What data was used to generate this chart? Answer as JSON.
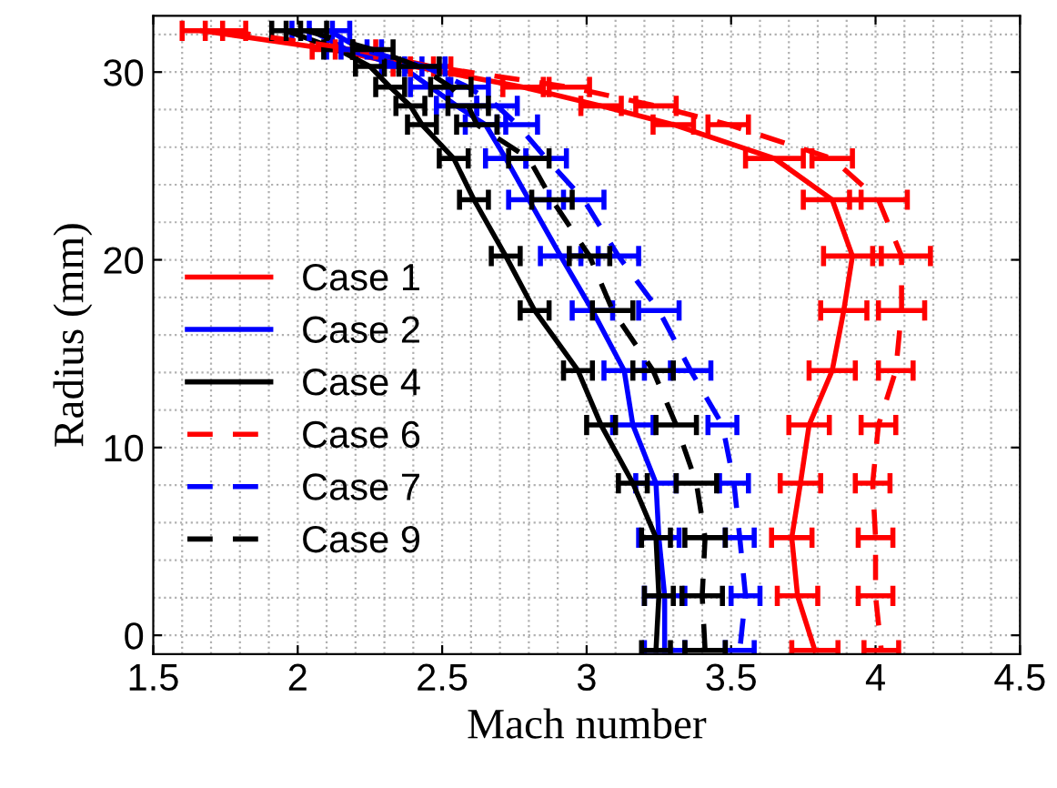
{
  "chart_data": {
    "type": "line",
    "xlabel": "Mach number",
    "ylabel": "Radius (mm)",
    "xlim": [
      1.5,
      4.5
    ],
    "xticks": [
      1.5,
      2,
      2.5,
      3,
      3.5,
      4,
      4.5
    ],
    "ylim": [
      -1,
      33
    ],
    "yticks": [
      0,
      10,
      20,
      30
    ],
    "grid": true,
    "legend": "left",
    "marker": "none",
    "series": [
      {
        "name": "Case 1",
        "color": "#ff0000",
        "line_style": "solid",
        "x": [
          1.67,
          2.12,
          2.4,
          2.78,
          3.05,
          3.3,
          3.65,
          3.85,
          3.92,
          3.89,
          3.85,
          3.77,
          3.74,
          3.71,
          3.73,
          3.79
        ],
        "values": [
          32.2,
          31.2,
          30.3,
          29.2,
          28.2,
          27.2,
          25.4,
          23.2,
          20.2,
          17.3,
          14.1,
          11.2,
          8.1,
          5.2,
          2.1,
          -0.8
        ],
        "xerrors": [
          0.07,
          0.07,
          0.07,
          0.07,
          0.07,
          0.07,
          0.1,
          0.1,
          0.1,
          0.08,
          0.08,
          0.07,
          0.07,
          0.07,
          0.07,
          0.08
        ]
      },
      {
        "name": "Case 2",
        "color": "#0000ff",
        "line_style": "solid",
        "x": [
          2.05,
          2.17,
          2.36,
          2.46,
          2.55,
          2.65,
          2.72,
          2.8,
          2.91,
          3.02,
          3.13,
          3.16,
          3.24,
          3.25,
          3.27,
          3.27
        ],
        "values": [
          32.2,
          31.2,
          30.3,
          29.2,
          28.2,
          27.2,
          25.4,
          23.2,
          20.2,
          17.3,
          14.1,
          11.2,
          8.1,
          5.2,
          2.1,
          -0.8
        ],
        "xerrors": [
          0.07,
          0.07,
          0.07,
          0.07,
          0.07,
          0.07,
          0.07,
          0.07,
          0.07,
          0.07,
          0.07,
          0.07,
          0.07,
          0.07,
          0.07,
          0.07
        ]
      },
      {
        "name": "Case 4",
        "color": "#000000",
        "line_style": "solid",
        "x": [
          1.96,
          2.14,
          2.25,
          2.32,
          2.39,
          2.43,
          2.54,
          2.61,
          2.72,
          2.82,
          2.97,
          3.05,
          3.16,
          3.24,
          3.25,
          3.24
        ],
        "values": [
          32.2,
          31.2,
          30.3,
          29.2,
          28.2,
          27.2,
          25.4,
          23.2,
          20.2,
          17.3,
          14.1,
          11.2,
          8.1,
          5.2,
          2.1,
          -0.8
        ],
        "xerrors": [
          0.05,
          0.05,
          0.05,
          0.05,
          0.05,
          0.05,
          0.05,
          0.05,
          0.05,
          0.05,
          0.05,
          0.05,
          0.05,
          0.05,
          0.05,
          0.05
        ]
      },
      {
        "name": "Case 6",
        "color": "#ff0000",
        "line_style": "dashed",
        "x": [
          1.75,
          2.2,
          2.46,
          2.94,
          3.24,
          3.49,
          3.85,
          4.01,
          4.09,
          4.09,
          4.07,
          4.01,
          3.99,
          4.0,
          4.0,
          4.02
        ],
        "values": [
          32.2,
          31.2,
          30.3,
          29.2,
          28.2,
          27.2,
          25.4,
          23.2,
          20.2,
          17.3,
          14.1,
          11.2,
          8.1,
          5.2,
          2.1,
          -0.8
        ],
        "xerrors": [
          0.07,
          0.07,
          0.07,
          0.07,
          0.07,
          0.07,
          0.07,
          0.1,
          0.1,
          0.08,
          0.06,
          0.06,
          0.06,
          0.06,
          0.06,
          0.06
        ]
      },
      {
        "name": "Case 7",
        "color": "#0000ff",
        "line_style": "dashed",
        "x": [
          2.11,
          2.22,
          2.44,
          2.59,
          2.69,
          2.76,
          2.86,
          2.99,
          3.11,
          3.25,
          3.36,
          3.47,
          3.51,
          3.53,
          3.55,
          3.53
        ],
        "values": [
          32.2,
          31.2,
          30.3,
          29.2,
          28.2,
          27.2,
          25.4,
          23.2,
          20.2,
          17.3,
          14.1,
          11.2,
          8.1,
          5.2,
          2.1,
          -0.8
        ],
        "xerrors": [
          0.07,
          0.07,
          0.07,
          0.07,
          0.07,
          0.07,
          0.07,
          0.07,
          0.07,
          0.07,
          0.07,
          0.05,
          0.05,
          0.05,
          0.05,
          0.05
        ]
      },
      {
        "name": "Case 9",
        "color": "#000000",
        "line_style": "dashed",
        "x": [
          2.03,
          2.26,
          2.42,
          2.53,
          2.59,
          2.62,
          2.8,
          2.88,
          3.01,
          3.09,
          3.23,
          3.31,
          3.38,
          3.41,
          3.4,
          3.41
        ],
        "values": [
          32.2,
          31.2,
          30.3,
          29.2,
          28.2,
          27.2,
          25.4,
          23.2,
          20.2,
          17.3,
          14.1,
          11.2,
          8.1,
          5.2,
          2.1,
          -0.8
        ],
        "xerrors": [
          0.07,
          0.07,
          0.07,
          0.07,
          0.07,
          0.07,
          0.07,
          0.07,
          0.07,
          0.07,
          0.07,
          0.07,
          0.07,
          0.07,
          0.07,
          0.07
        ]
      }
    ]
  }
}
